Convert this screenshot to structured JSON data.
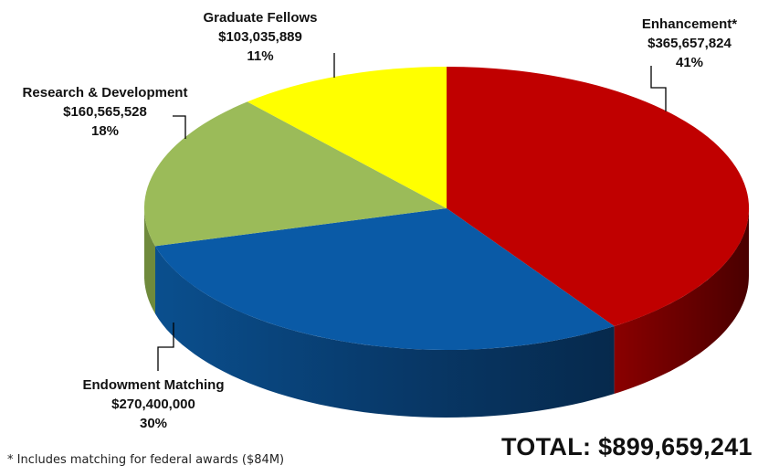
{
  "chart_data": {
    "type": "pie",
    "style": "3d",
    "total_label": "TOTAL: $899,659,241",
    "footnote": "* Includes matching for federal awards ($84M)",
    "slices": [
      {
        "name": "Enhancement*",
        "amount": "$365,657,824",
        "percent": "41%",
        "value": 365657824,
        "color": "#c00000"
      },
      {
        "name": "Endowment Matching",
        "amount": "$270,400,000",
        "percent": "30%",
        "value": 270400000,
        "color": "#0a5aa6"
      },
      {
        "name": "Research & Development",
        "amount": "$160,565,528",
        "percent": "18%",
        "value": 160565528,
        "color": "#9bbb59"
      },
      {
        "name": "Graduate Fellows",
        "amount": "$103,035,889",
        "percent": "11%",
        "value": 103035889,
        "color": "#ffff00"
      }
    ]
  }
}
